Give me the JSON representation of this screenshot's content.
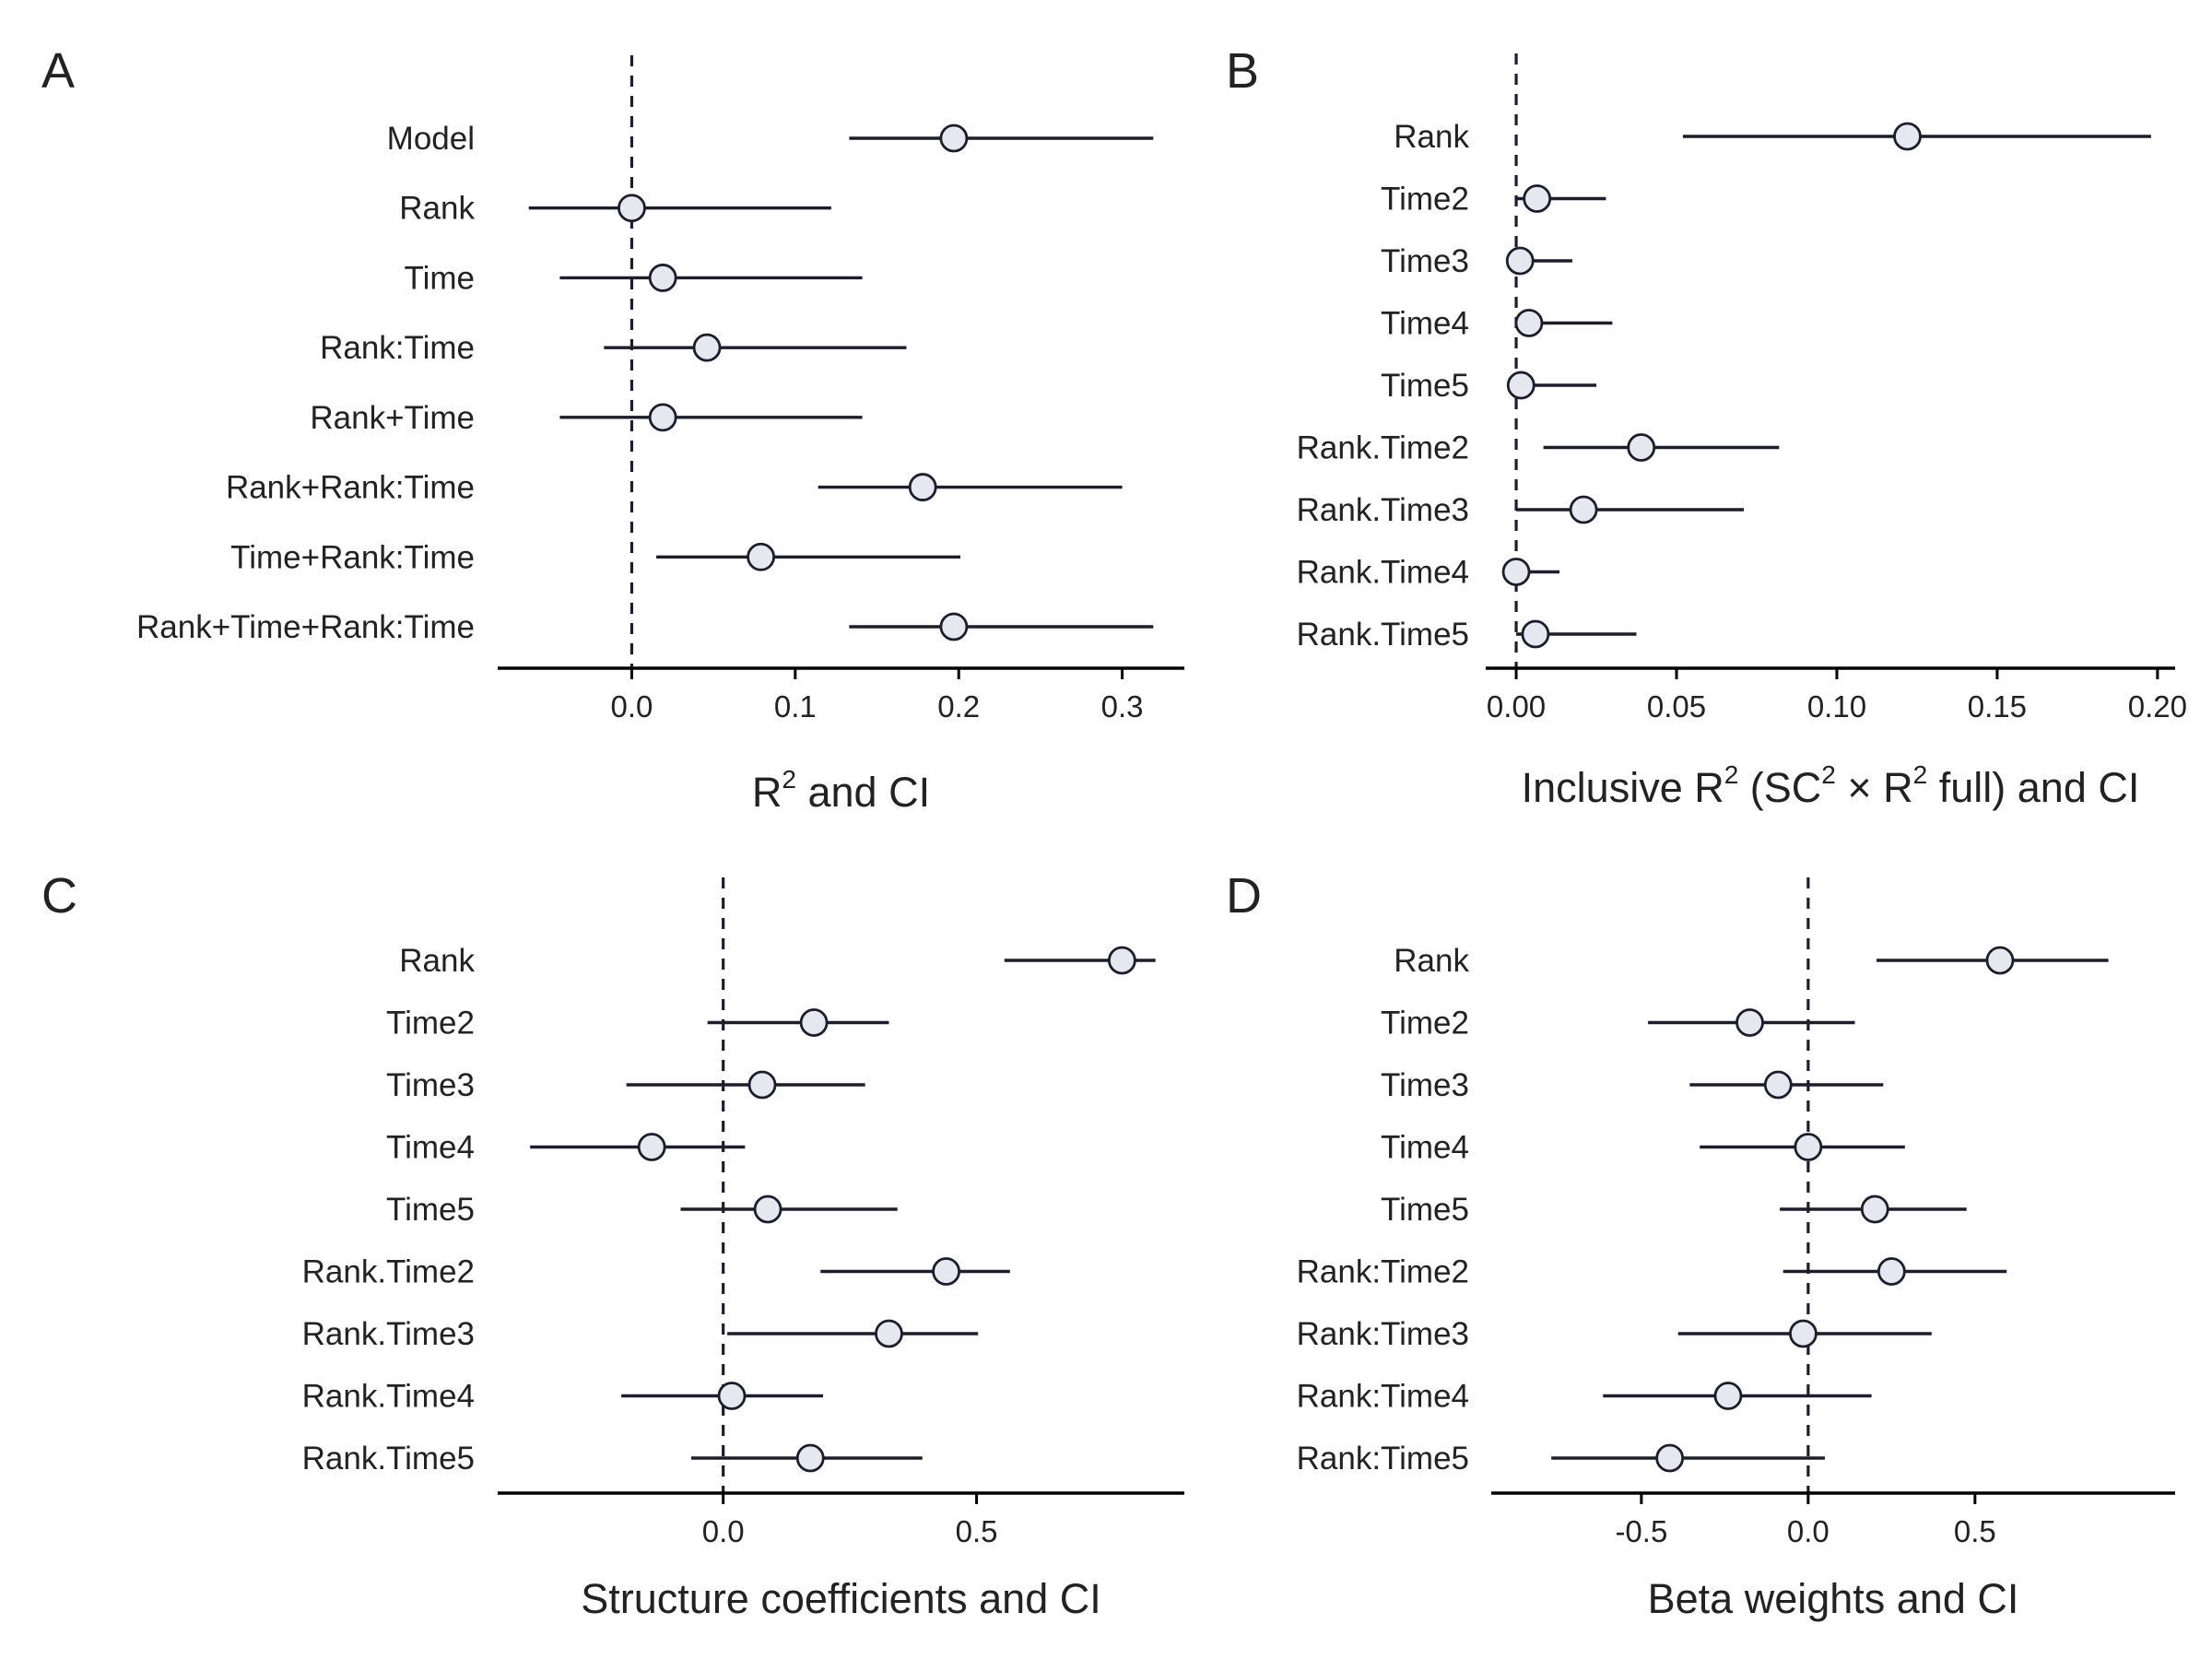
{
  "chart_data": [
    {
      "type": "scatter",
      "panel": "A",
      "xlabel": "R^2 and CI",
      "xlabel_parts": {
        "before": "R",
        "sup1": "2",
        "after": " and CI"
      },
      "xlim": [
        -0.082,
        0.338
      ],
      "xticks": [
        0.0,
        0.1,
        0.2,
        0.3
      ],
      "xtick_labels": [
        "0.0",
        "0.1",
        "0.2",
        "0.3"
      ],
      "reference_line_x": 0,
      "categories": [
        "Model",
        "Rank",
        "Time",
        "Rank:Time",
        "Rank+Time",
        "Rank+Rank:Time",
        "Time+Rank:Time",
        "Rank+Time+Rank:Time"
      ],
      "values": [
        0.197,
        0.0,
        0.019,
        0.046,
        0.019,
        0.178,
        0.079,
        0.197
      ],
      "ci_low": [
        0.133,
        -0.063,
        -0.044,
        -0.017,
        -0.044,
        0.114,
        0.015,
        0.133
      ],
      "ci_high": [
        0.319,
        0.122,
        0.141,
        0.168,
        0.141,
        0.3,
        0.201,
        0.319
      ]
    },
    {
      "type": "scatter",
      "panel": "B",
      "xlabel": "Inclusive R^2 (SC^2 × R^2 full) and CI",
      "xlabel_parts": {
        "before": "Inclusive R",
        "sup1": "2",
        "mid1": " (SC",
        "sup2": "2",
        "mid2": " × R",
        "sup3": "2",
        "after": " full) and CI"
      },
      "xlim": [
        -0.0095,
        0.2055
      ],
      "xticks": [
        0.0,
        0.05,
        0.1,
        0.15,
        0.2
      ],
      "xtick_labels": [
        "0.00",
        "0.05",
        "0.10",
        "0.15",
        "0.20"
      ],
      "reference_line_x": 0,
      "categories": [
        "Rank",
        "Time2",
        "Time3",
        "Time4",
        "Time5",
        "Rank.Time2",
        "Rank.Time3",
        "Rank.Time4",
        "Rank.Time5"
      ],
      "values": [
        0.122,
        0.0065,
        0.0012,
        0.004,
        0.0015,
        0.039,
        0.021,
        0.0,
        0.006
      ],
      "ci_low": [
        0.052,
        0.0,
        0.0,
        0.0,
        0.0,
        0.0085,
        0.0,
        0.0,
        0.0
      ],
      "ci_high": [
        0.198,
        0.028,
        0.0175,
        0.03,
        0.025,
        0.082,
        0.071,
        0.0135,
        0.0375
      ]
    },
    {
      "type": "scatter",
      "panel": "C",
      "xlabel": "Structure coefficients and CI",
      "xlim": [
        -0.445,
        0.91
      ],
      "xticks": [
        0.0,
        0.5
      ],
      "xtick_labels": [
        "0.0",
        "0.5"
      ],
      "reference_line_x": 0,
      "categories": [
        "Rank",
        "Time2",
        "Time3",
        "Time4",
        "Time5",
        "Rank.Time2",
        "Rank.Time3",
        "Rank.Time4",
        "Rank.Time5"
      ],
      "values": [
        0.787,
        0.179,
        0.077,
        -0.141,
        0.088,
        0.44,
        0.327,
        0.017,
        0.172
      ],
      "ci_low": [
        0.555,
        -0.031,
        -0.191,
        -0.381,
        -0.084,
        0.192,
        0.008,
        -0.201,
        -0.063
      ],
      "ci_high": [
        0.853,
        0.327,
        0.28,
        0.043,
        0.344,
        0.566,
        0.503,
        0.197,
        0.393
      ]
    },
    {
      "type": "scatter",
      "panel": "D",
      "xlabel": "Beta weights and CI",
      "xlim": [
        -0.95,
        1.1
      ],
      "xticks": [
        -0.5,
        0.0,
        0.5
      ],
      "xtick_labels": [
        "-0.5",
        "0.0",
        "0.5"
      ],
      "reference_line_x": 0,
      "categories": [
        "Rank",
        "Time2",
        "Time3",
        "Time4",
        "Time5",
        "Rank:Time2",
        "Rank:Time3",
        "Rank:Time4",
        "Rank:Time5"
      ],
      "values": [
        0.575,
        -0.175,
        -0.09,
        0.0,
        0.2,
        0.25,
        -0.015,
        -0.24,
        -0.415
      ],
      "ci_low": [
        0.205,
        -0.48,
        -0.355,
        -0.325,
        -0.085,
        -0.075,
        -0.39,
        -0.615,
        -0.77
      ],
      "ci_high": [
        0.9,
        0.14,
        0.225,
        0.29,
        0.475,
        0.595,
        0.37,
        0.19,
        0.05
      ]
    }
  ]
}
